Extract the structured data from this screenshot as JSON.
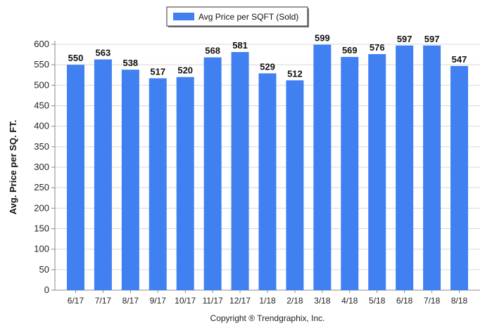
{
  "chart_data": {
    "type": "bar",
    "title": "",
    "xlabel": "",
    "ylabel": "Avg. Price per SQ. FT.",
    "legend": {
      "label": "Avg Price per SQFT (Sold)",
      "placement": "top-center"
    },
    "categories": [
      "6/17",
      "7/17",
      "8/17",
      "9/17",
      "10/17",
      "11/17",
      "12/17",
      "1/18",
      "2/18",
      "3/18",
      "4/18",
      "5/18",
      "6/18",
      "7/18",
      "8/18"
    ],
    "series": [
      {
        "name": "Avg Price per SQFT (Sold)",
        "values": [
          550,
          563,
          538,
          517,
          520,
          568,
          581,
          529,
          512,
          599,
          569,
          576,
          597,
          597,
          547
        ]
      }
    ],
    "ylim": [
      0,
      600
    ],
    "yticks": [
      0,
      50,
      100,
      150,
      200,
      250,
      300,
      350,
      400,
      450,
      500,
      550,
      600
    ],
    "grid": true,
    "bar_color": "#4080f0",
    "data_labels": true
  },
  "footer": {
    "copyright": "Copyright ® Trendgraphix, Inc."
  }
}
